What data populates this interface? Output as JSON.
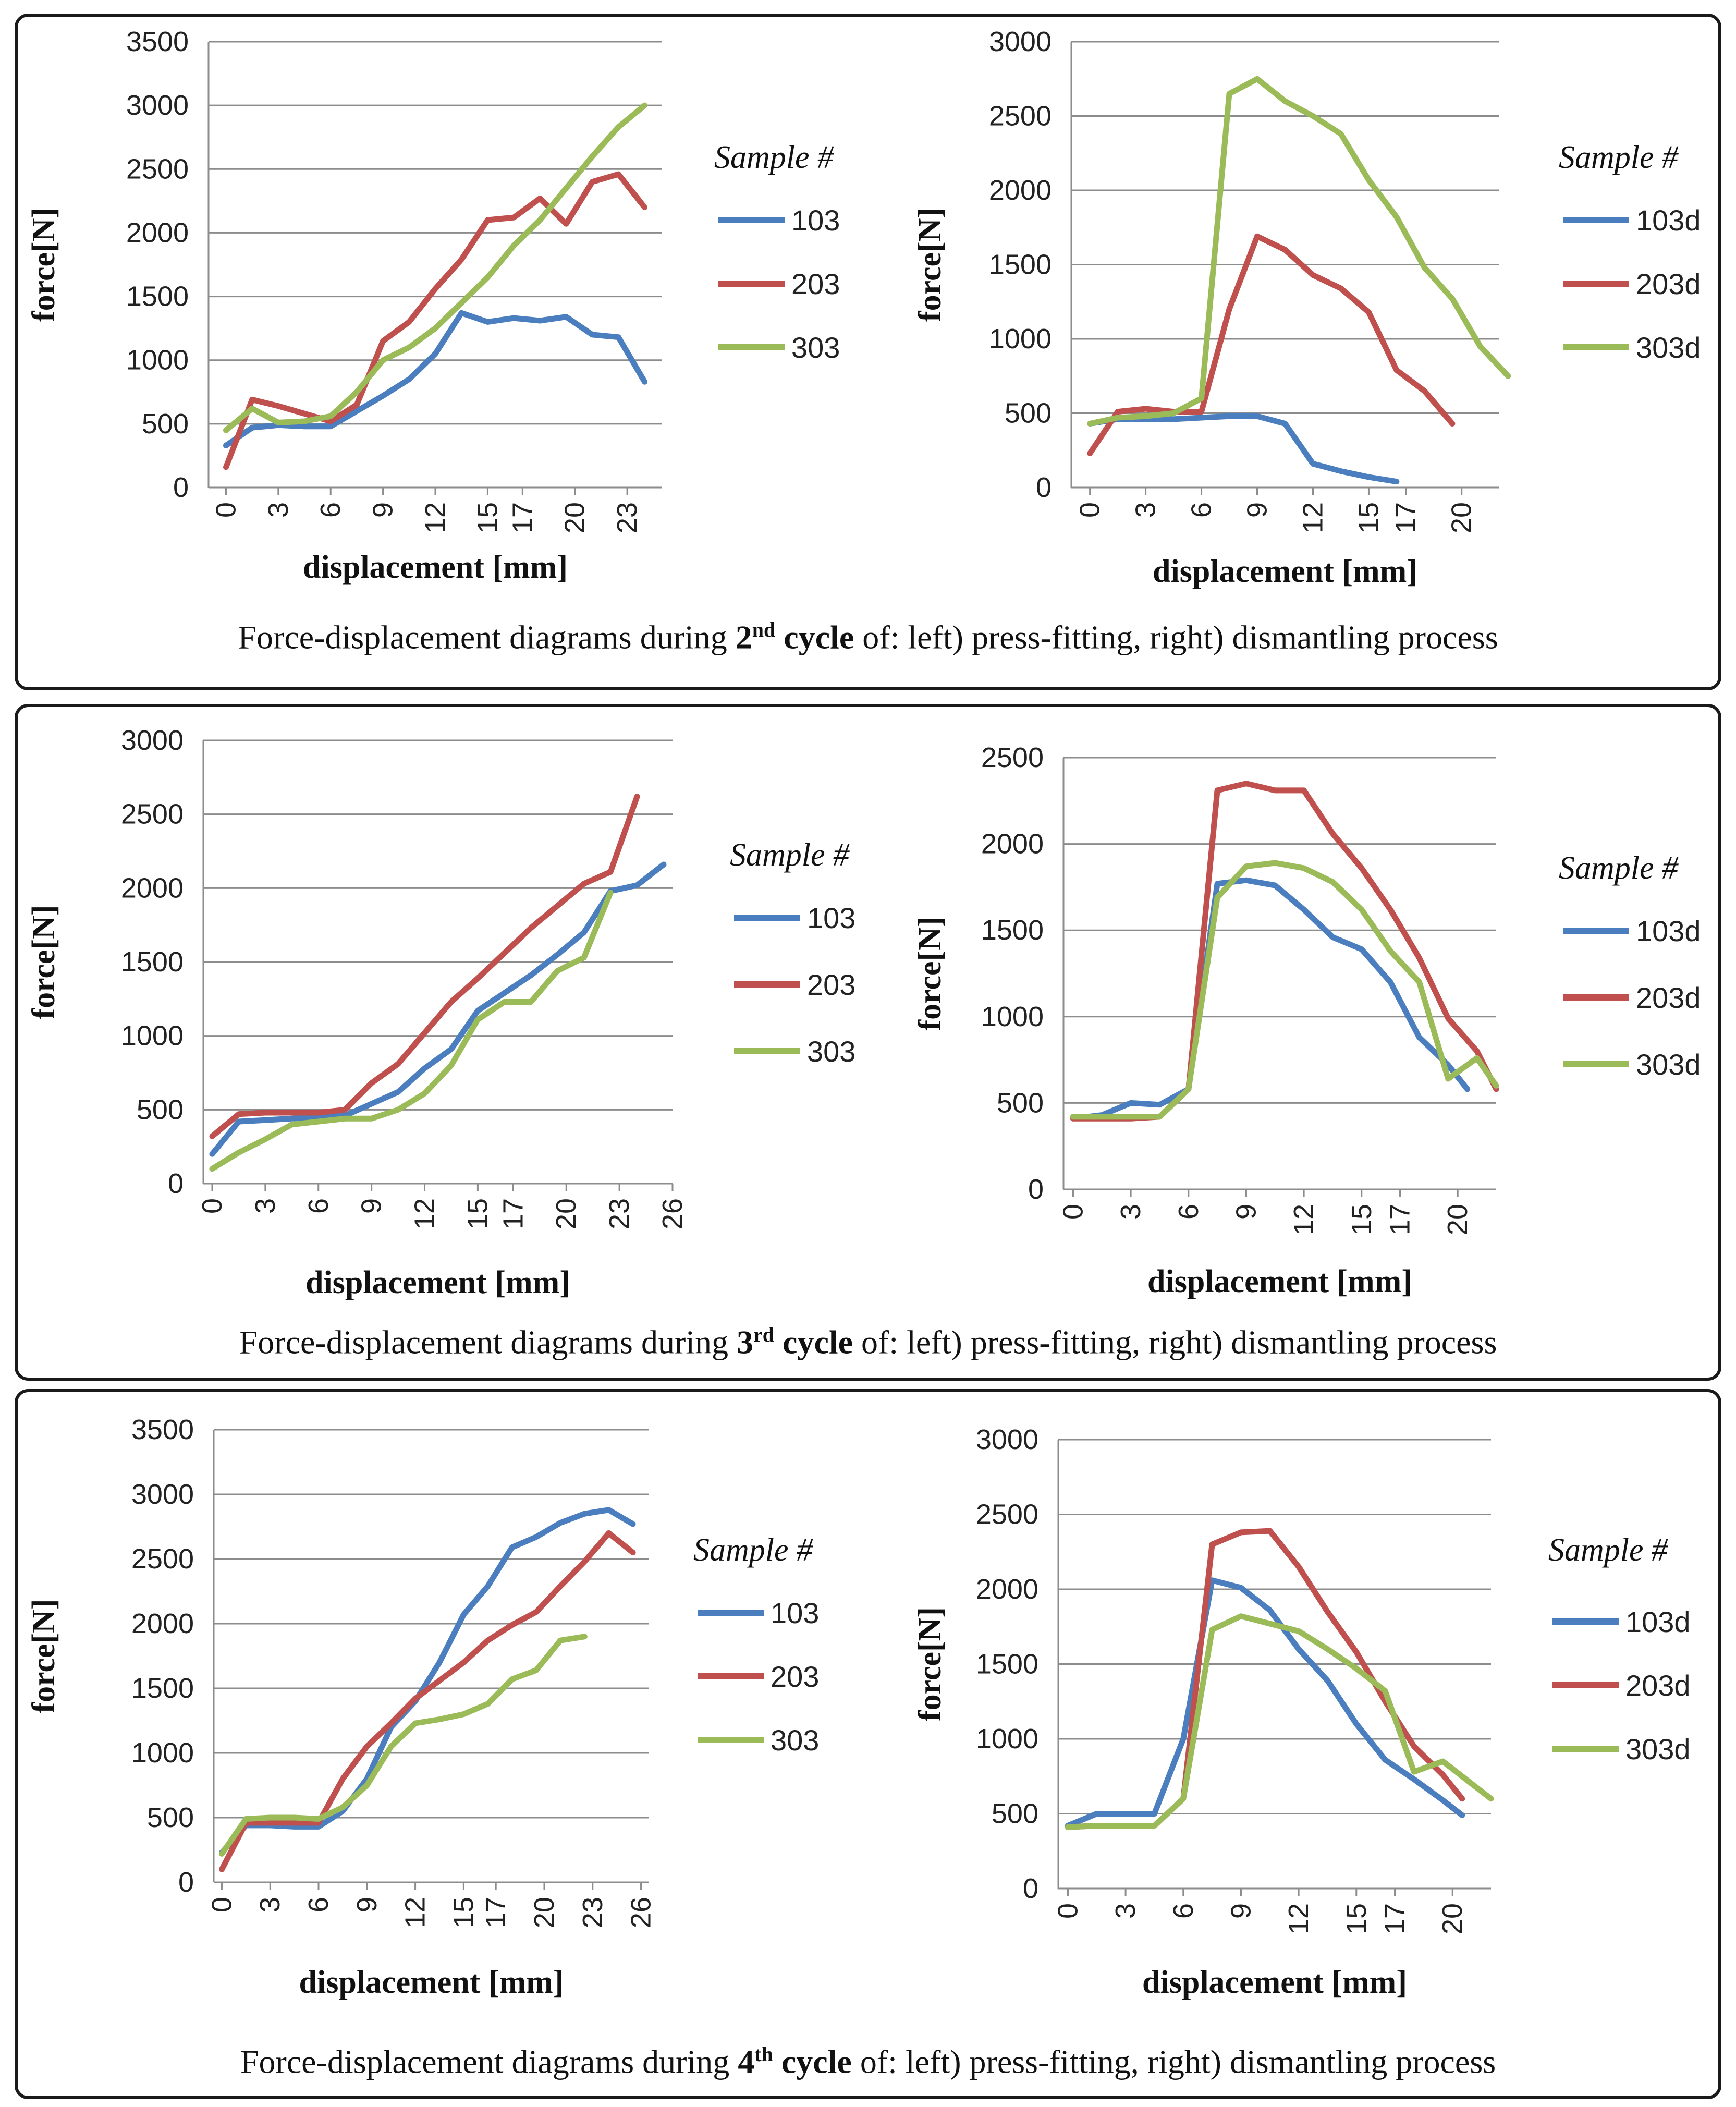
{
  "captions": [
    {
      "pre": "Force-displacement diagrams during ",
      "ordinal": "2",
      "suffix": "nd",
      "cycle": " cycle",
      "post": " of: left) press-fitting, right) dismantling process"
    },
    {
      "pre": "Force-displacement diagrams during ",
      "ordinal": "3",
      "suffix": "rd",
      "cycle": " cycle",
      "post": " of: left) press-fitting, right) dismantling process"
    },
    {
      "pre": "Force-displacement diagrams during ",
      "ordinal": "4",
      "suffix": "th",
      "cycle": " cycle",
      "post": " of: left) press-fitting, right) dismantling process"
    }
  ],
  "colors": {
    "103": "#4a7ebf",
    "203": "#c0504d",
    "303": "#9bbb59",
    "grid": "#8c8c8c",
    "axis": "#8c8c8c"
  },
  "chart_data": [
    {
      "id": "cycle2-press-fitting",
      "type": "line",
      "xlabel": "displacement [mm]",
      "ylabel": "force[N]",
      "ylim": [
        0,
        3500
      ],
      "yticks": [
        0,
        500,
        1000,
        1500,
        2000,
        2500,
        3000,
        3500
      ],
      "xlim": [
        -1,
        25
      ],
      "xticks": [
        0,
        3,
        6,
        9,
        12,
        15,
        17,
        20,
        23
      ],
      "legend_title": "Sample #",
      "series": [
        {
          "name": "103",
          "x": [
            0,
            1.5,
            3,
            4.5,
            6,
            7.5,
            9,
            10.5,
            12,
            13.5,
            15,
            16.5,
            18,
            19.5,
            21,
            22.5,
            24
          ],
          "y": [
            330,
            470,
            490,
            480,
            480,
            600,
            720,
            850,
            1050,
            1370,
            1300,
            1330,
            1310,
            1340,
            1200,
            1180,
            830
          ]
        },
        {
          "name": "203",
          "x": [
            0,
            1.5,
            3,
            4.5,
            6,
            7.5,
            9,
            10.5,
            12,
            13.5,
            15,
            16.5,
            18,
            19.5,
            21,
            22.5,
            24
          ],
          "y": [
            160,
            690,
            640,
            580,
            520,
            650,
            1150,
            1300,
            1560,
            1790,
            2100,
            2120,
            2270,
            2070,
            2400,
            2460,
            2200
          ]
        },
        {
          "name": "303",
          "x": [
            0,
            1.5,
            3,
            4.5,
            6,
            7.5,
            9,
            10.5,
            12,
            13.5,
            15,
            16.5,
            18,
            19.5,
            21,
            22.5,
            24
          ],
          "y": [
            450,
            620,
            510,
            520,
            560,
            750,
            1000,
            1100,
            1250,
            1450,
            1650,
            1900,
            2100,
            2350,
            2600,
            2830,
            3000
          ]
        }
      ]
    },
    {
      "id": "cycle2-dismantling",
      "type": "line",
      "xlabel": "displacement [mm]",
      "ylabel": "force[N]",
      "ylim": [
        0,
        3000
      ],
      "yticks": [
        0,
        500,
        1000,
        1500,
        2000,
        2500,
        3000
      ],
      "xlim": [
        -1,
        22
      ],
      "xticks": [
        0,
        3,
        6,
        9,
        12,
        15,
        17,
        20
      ],
      "legend_title": "Sample #",
      "series": [
        {
          "name": "103d",
          "x": [
            0,
            1.5,
            3,
            4.5,
            6,
            7.5,
            9,
            10.5,
            12,
            13.5,
            15,
            16.5
          ],
          "y": [
            430,
            460,
            460,
            460,
            470,
            480,
            480,
            430,
            160,
            110,
            70,
            40
          ]
        },
        {
          "name": "203d",
          "x": [
            0,
            1.5,
            3,
            4.5,
            6,
            7.5,
            9,
            10.5,
            12,
            13.5,
            15,
            16.5,
            18,
            19.5
          ],
          "y": [
            230,
            510,
            530,
            510,
            510,
            1200,
            1690,
            1600,
            1430,
            1340,
            1180,
            790,
            650,
            430
          ]
        },
        {
          "name": "303d",
          "x": [
            0,
            1.5,
            3,
            4.5,
            6,
            7.5,
            9,
            10.5,
            12,
            13.5,
            15,
            16.5,
            18,
            19.5,
            21,
            22.5
          ],
          "y": [
            430,
            470,
            480,
            500,
            600,
            2650,
            2750,
            2600,
            2500,
            2380,
            2070,
            1820,
            1480,
            1270,
            950,
            750
          ]
        }
      ]
    },
    {
      "id": "cycle3-press-fitting",
      "type": "line",
      "xlabel": "displacement [mm]",
      "ylabel": "force[N]",
      "ylim": [
        0,
        3000
      ],
      "yticks": [
        0,
        500,
        1000,
        1500,
        2000,
        2500,
        3000
      ],
      "xlim": [
        -0.5,
        26
      ],
      "xticks": [
        0,
        3,
        6,
        9,
        12,
        15,
        17,
        20,
        23,
        26
      ],
      "legend_title": "Sample #",
      "series": [
        {
          "name": "103",
          "x": [
            0,
            1.5,
            3,
            4.5,
            6,
            7.5,
            9,
            10.5,
            12,
            13.5,
            15,
            16.5,
            18,
            19.5,
            21,
            22.5,
            24,
            25.5
          ],
          "y": [
            200,
            420,
            430,
            440,
            450,
            460,
            540,
            620,
            780,
            910,
            1170,
            1290,
            1410,
            1550,
            1700,
            1980,
            2020,
            2160
          ]
        },
        {
          "name": "203",
          "x": [
            0,
            1.5,
            3,
            4.5,
            6,
            7.5,
            9,
            10.5,
            12,
            13.5,
            15,
            16.5,
            18,
            19.5,
            21,
            22.5,
            24
          ],
          "y": [
            320,
            470,
            480,
            480,
            480,
            500,
            680,
            810,
            1020,
            1230,
            1390,
            1560,
            1730,
            1880,
            2030,
            2110,
            2620
          ]
        },
        {
          "name": "303",
          "x": [
            0,
            1.5,
            3,
            4.5,
            6,
            7.5,
            9,
            10.5,
            12,
            13.5,
            15,
            16.5,
            18,
            19.5,
            21,
            22.5
          ],
          "y": [
            100,
            210,
            300,
            400,
            420,
            440,
            440,
            500,
            610,
            800,
            1110,
            1230,
            1230,
            1440,
            1530,
            1970
          ]
        }
      ]
    },
    {
      "id": "cycle3-dismantling",
      "type": "line",
      "xlabel": "displacement [mm]",
      "ylabel": "force[N]",
      "ylim": [
        0,
        2500
      ],
      "yticks": [
        0,
        500,
        1000,
        1500,
        2000,
        2500
      ],
      "xlim": [
        -0.5,
        22
      ],
      "xticks": [
        0,
        3,
        6,
        9,
        12,
        15,
        17,
        20
      ],
      "legend_title": "Sample #",
      "series": [
        {
          "name": "103d",
          "x": [
            0,
            1.5,
            3,
            4.5,
            6,
            7.5,
            9,
            10.5,
            12,
            13.5,
            15,
            16.5,
            18,
            19.5,
            20.5
          ],
          "y": [
            410,
            430,
            500,
            490,
            580,
            1770,
            1790,
            1760,
            1620,
            1460,
            1390,
            1200,
            880,
            720,
            580
          ]
        },
        {
          "name": "203d",
          "x": [
            0,
            1.5,
            3,
            4.5,
            6,
            7.5,
            9,
            10.5,
            12,
            13.5,
            15,
            16.5,
            18,
            19.5,
            21,
            22
          ],
          "y": [
            410,
            410,
            410,
            420,
            580,
            2310,
            2350,
            2310,
            2310,
            2060,
            1860,
            1620,
            1340,
            990,
            800,
            580
          ]
        },
        {
          "name": "303d",
          "x": [
            0,
            1.5,
            3,
            4.5,
            6,
            7.5,
            9,
            10.5,
            12,
            13.5,
            15,
            16.5,
            18,
            19.5,
            21,
            22
          ],
          "y": [
            420,
            420,
            420,
            420,
            580,
            1690,
            1870,
            1890,
            1860,
            1780,
            1620,
            1380,
            1200,
            640,
            760,
            600
          ]
        }
      ]
    },
    {
      "id": "cycle4-press-fitting",
      "type": "line",
      "xlabel": "displacement [mm]",
      "ylabel": "force[N]",
      "ylim": [
        0,
        3500
      ],
      "yticks": [
        0,
        500,
        1000,
        1500,
        2000,
        2500,
        3000,
        3500
      ],
      "xlim": [
        -0.5,
        26.5
      ],
      "xticks": [
        0,
        3,
        6,
        9,
        12,
        15,
        17,
        20,
        23,
        26
      ],
      "legend_title": "Sample #",
      "series": [
        {
          "name": "103",
          "x": [
            0,
            1.5,
            3,
            4.5,
            6,
            7.5,
            9,
            10.5,
            12,
            13.5,
            15,
            16.5,
            18,
            19.5,
            21,
            22.5,
            24,
            25.5
          ],
          "y": [
            230,
            440,
            440,
            430,
            430,
            550,
            800,
            1200,
            1400,
            1700,
            2070,
            2290,
            2590,
            2670,
            2780,
            2850,
            2880,
            2770
          ]
        },
        {
          "name": "203",
          "x": [
            0,
            1.5,
            3,
            4.5,
            6,
            7.5,
            9,
            10.5,
            12,
            13.5,
            15,
            16.5,
            18,
            19.5,
            21,
            22.5,
            24,
            25.5
          ],
          "y": [
            100,
            460,
            460,
            460,
            460,
            800,
            1050,
            1230,
            1420,
            1560,
            1700,
            1870,
            1990,
            2090,
            2290,
            2480,
            2700,
            2550
          ]
        },
        {
          "name": "303",
          "x": [
            0,
            1.5,
            3,
            4.5,
            6,
            7.5,
            9,
            10.5,
            12,
            13.5,
            15,
            16.5,
            18,
            19.5,
            21,
            22.5
          ],
          "y": [
            220,
            490,
            500,
            500,
            490,
            580,
            750,
            1050,
            1230,
            1260,
            1300,
            1380,
            1570,
            1640,
            1870,
            1900
          ]
        }
      ]
    },
    {
      "id": "cycle4-dismantling",
      "type": "line",
      "xlabel": "displacement [mm]",
      "ylabel": "force[N]",
      "ylim": [
        0,
        3000
      ],
      "yticks": [
        0,
        500,
        1000,
        1500,
        2000,
        2500,
        3000
      ],
      "xlim": [
        -0.5,
        22
      ],
      "xticks": [
        0,
        3,
        6,
        9,
        12,
        15,
        17,
        20
      ],
      "legend_title": "Sample #",
      "series": [
        {
          "name": "103d",
          "x": [
            0,
            1.5,
            3,
            4.5,
            6,
            7.5,
            9,
            10.5,
            12,
            13.5,
            15,
            16.5,
            18,
            19.5,
            20.5
          ],
          "y": [
            420,
            500,
            500,
            500,
            1000,
            2060,
            2010,
            1860,
            1600,
            1390,
            1100,
            860,
            730,
            590,
            490
          ]
        },
        {
          "name": "203d",
          "x": [
            0,
            1.5,
            3,
            4.5,
            6,
            7.5,
            9,
            10.5,
            12,
            13.5,
            15,
            16.5,
            18,
            19.5,
            20.5
          ],
          "y": [
            410,
            420,
            420,
            420,
            600,
            2300,
            2380,
            2390,
            2150,
            1850,
            1580,
            1250,
            950,
            760,
            600
          ]
        },
        {
          "name": "303d",
          "x": [
            0,
            1.5,
            3,
            4.5,
            6,
            7.5,
            9,
            10.5,
            12,
            13.5,
            15,
            16.5,
            18,
            19.5,
            21,
            22
          ],
          "y": [
            410,
            420,
            420,
            420,
            600,
            1730,
            1820,
            1770,
            1720,
            1600,
            1470,
            1320,
            780,
            850,
            700,
            600
          ]
        }
      ]
    }
  ]
}
